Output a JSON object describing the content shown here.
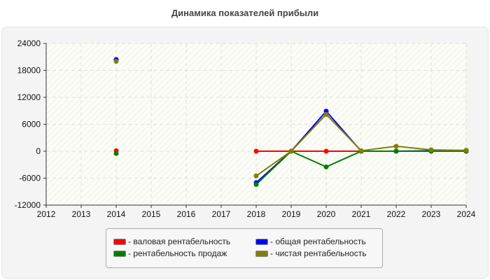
{
  "chart_data": {
    "type": "line",
    "title": "Динамика показателей прибыли",
    "xlabel": "",
    "ylabel": "",
    "x": [
      2012,
      2013,
      2014,
      2015,
      2016,
      2017,
      2018,
      2019,
      2020,
      2021,
      2022,
      2023,
      2024
    ],
    "xlim": [
      2012,
      2024
    ],
    "ylim": [
      -12000,
      24000
    ],
    "yticks": [
      -12000,
      -6000,
      0,
      6000,
      12000,
      18000,
      24000
    ],
    "grid": true,
    "legend_position": "bottom",
    "series": [
      {
        "name": "- валовая рентабельность",
        "color": "#ff0000",
        "values": [
          null,
          null,
          100,
          null,
          null,
          null,
          0,
          0,
          0,
          0,
          0,
          0,
          0
        ]
      },
      {
        "name": "- общая рентабельность",
        "color": "#0000ff",
        "values": [
          null,
          null,
          20400,
          null,
          null,
          null,
          -7000,
          0,
          8900,
          0,
          0,
          100,
          0
        ]
      },
      {
        "name": "- рентабельность продаж",
        "color": "#008000",
        "values": [
          null,
          null,
          -500,
          null,
          null,
          null,
          -7400,
          0,
          -3500,
          0,
          0,
          0,
          0
        ]
      },
      {
        "name": "- чистая рентабельность",
        "color": "#808000",
        "values": [
          null,
          null,
          20000,
          null,
          null,
          null,
          -5500,
          0,
          8200,
          100,
          1100,
          300,
          200
        ]
      }
    ]
  }
}
